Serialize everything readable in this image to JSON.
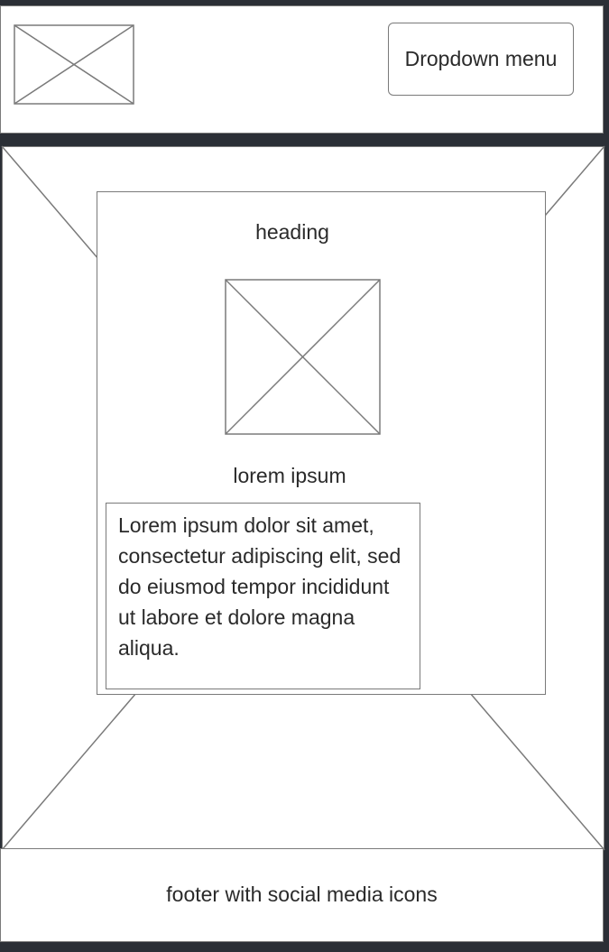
{
  "header": {
    "dropdown_label": "Dropdown menu"
  },
  "card": {
    "heading": "heading",
    "subheading": "lorem ipsum",
    "body": "Lorem ipsum dolor sit amet, consectetur adipiscing elit, sed do eiusmod tempor incididunt ut labore et dolore magna aliqua."
  },
  "footer": {
    "label": "footer with social media icons"
  },
  "colors": {
    "background": "#2b2f36",
    "panel": "#ffffff",
    "stroke": "#7a7a7a",
    "text": "#2a2a2a"
  },
  "icons": {
    "logo": "image-placeholder-icon",
    "hero": "image-placeholder-icon",
    "card_image": "image-placeholder-icon"
  }
}
